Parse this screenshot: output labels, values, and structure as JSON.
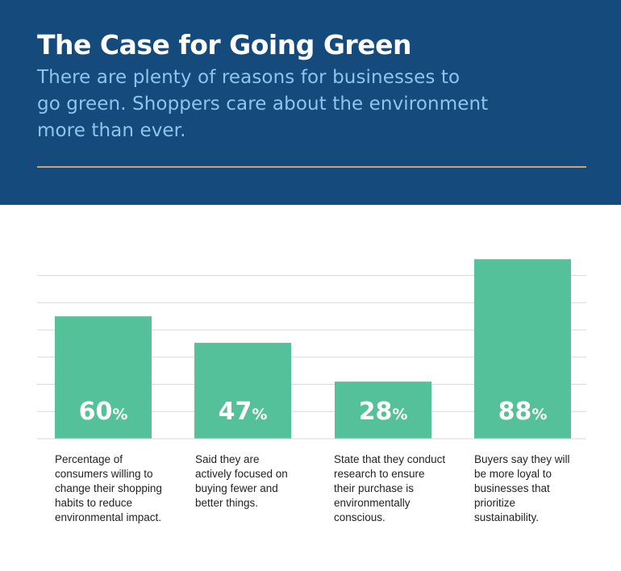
{
  "header": {
    "title": "The Case for Going Green",
    "subtitle": "There are plenty of reasons for businesses to go green. Shoppers care about the environment more than ever."
  },
  "colors": {
    "header_bg": "#154b7c",
    "subtitle": "#8fc3f0",
    "rule": "#c8a772",
    "bar": "#55c19b",
    "grid": "#d9d9d9"
  },
  "chart_data": {
    "type": "bar",
    "categories": [
      "Percentage of consumers willing to change their shopping habits to reduce environmental impact.",
      "Said they are actively focused on buying fewer and better things.",
      "State that they conduct research to ensure their purchase is environmentally conscious.",
      "Buyers say they will be more loyal to businesses that prioritize sustainability."
    ],
    "values": [
      60,
      47,
      28,
      88
    ],
    "value_labels": [
      "60",
      "47",
      "28",
      "88"
    ],
    "unit": "%",
    "ylim": [
      0,
      80
    ],
    "grid": true,
    "grid_step": 13.33
  }
}
